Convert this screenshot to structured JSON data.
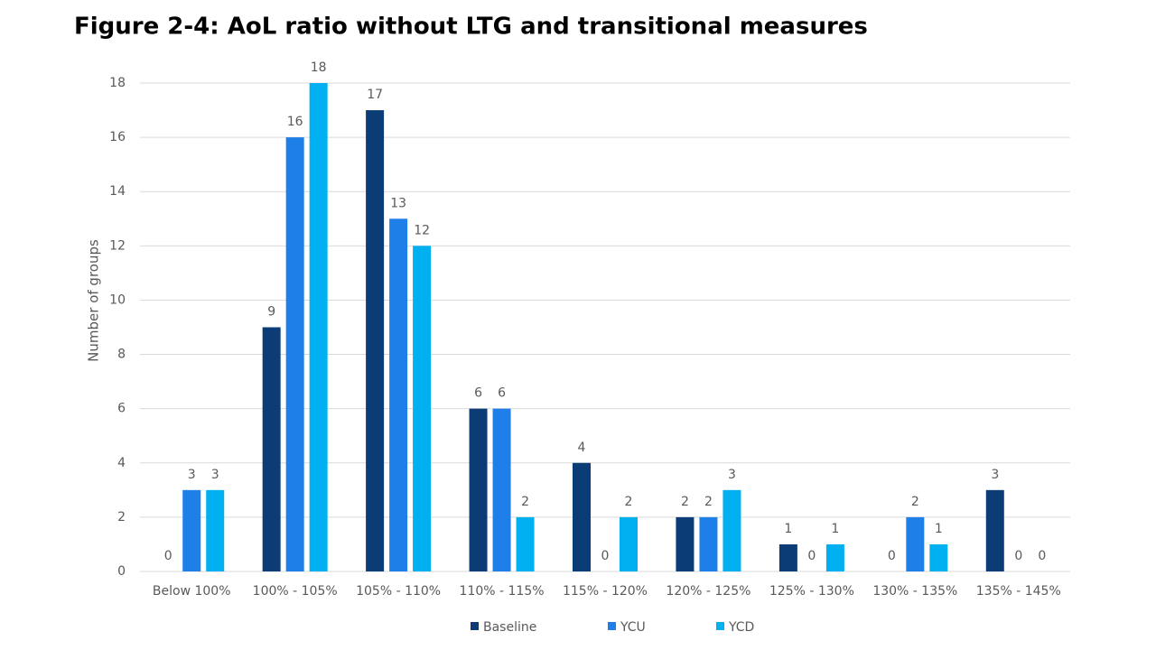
{
  "chart_data": {
    "type": "bar",
    "title": "Figure 2-4: AoL ratio without LTG and transitional measures",
    "y_label": "Number of groups",
    "categories": [
      "Below 100%",
      "100% - 105%",
      "105% - 110%",
      "110% - 115%",
      "115% - 120%",
      "120% - 125%",
      "125% - 130%",
      "130% - 135%",
      "135% - 145%"
    ],
    "series": [
      {
        "name": "Baseline",
        "color": "#0b3c76",
        "values": [
          0,
          9,
          17,
          6,
          4,
          2,
          1,
          0,
          3
        ]
      },
      {
        "name": "YCU",
        "color": "#1e7fe8",
        "values": [
          3,
          16,
          13,
          6,
          0,
          2,
          0,
          2,
          0
        ]
      },
      {
        "name": "YCD",
        "color": "#00b0f0",
        "values": [
          3,
          18,
          12,
          2,
          2,
          3,
          1,
          1,
          0
        ]
      }
    ],
    "ylim": [
      0,
      18
    ],
    "yticks": [
      0,
      2,
      4,
      6,
      8,
      10,
      12,
      14,
      16,
      18
    ],
    "grid": true,
    "legend": "bottom"
  }
}
